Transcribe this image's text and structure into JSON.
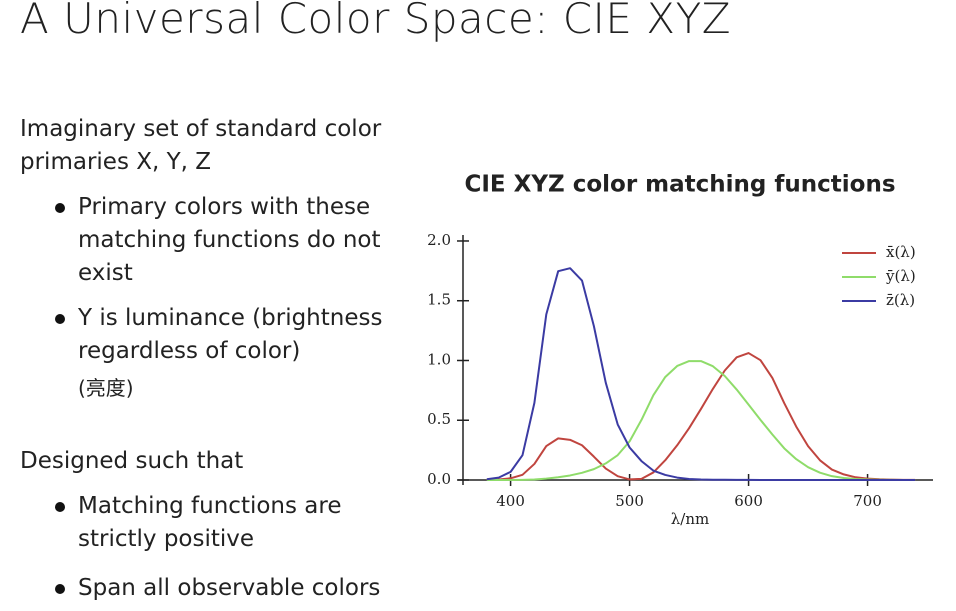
{
  "title": "A Universal Color Space: CIE XYZ",
  "sections": [
    {
      "text": "Imaginary set of standard color primaries X, Y, Z",
      "bullets": [
        "Primary colors with these matching functions do not exist",
        "Y is luminance (brightness regardless of color)"
      ],
      "note": "(亮度)"
    },
    {
      "text": "Designed such that",
      "bullets": [
        "Matching functions are strictly positive",
        "Span all observable colors"
      ]
    }
  ],
  "chart_data": {
    "type": "line",
    "title": "CIE XYZ color matching functions",
    "x_label": "λ/nm",
    "x": [
      380,
      390,
      400,
      410,
      420,
      430,
      440,
      450,
      460,
      470,
      480,
      490,
      500,
      510,
      520,
      530,
      540,
      550,
      560,
      570,
      580,
      590,
      600,
      610,
      620,
      630,
      640,
      650,
      660,
      670,
      680,
      690,
      700,
      710,
      720,
      730,
      740
    ],
    "series": [
      {
        "name": "x̄(λ)",
        "color": "#c0453f",
        "values": [
          0.0014,
          0.0042,
          0.0143,
          0.0435,
          0.1344,
          0.2839,
          0.3483,
          0.3362,
          0.2908,
          0.1954,
          0.0956,
          0.032,
          0.0049,
          0.0093,
          0.0633,
          0.1655,
          0.2904,
          0.4334,
          0.5945,
          0.7621,
          0.9163,
          1.0263,
          1.0622,
          1.0026,
          0.8544,
          0.6424,
          0.4479,
          0.2835,
          0.1649,
          0.0874,
          0.0468,
          0.0227,
          0.0114,
          0.0058,
          0.0029,
          0.0014,
          0.0007
        ]
      },
      {
        "name": "ȳ(λ)",
        "color": "#8fdc6a",
        "values": [
          0,
          0.0001,
          0.0004,
          0.0012,
          0.004,
          0.0116,
          0.023,
          0.038,
          0.06,
          0.091,
          0.139,
          0.208,
          0.323,
          0.503,
          0.71,
          0.862,
          0.954,
          0.995,
          0.995,
          0.952,
          0.87,
          0.757,
          0.631,
          0.503,
          0.381,
          0.265,
          0.175,
          0.107,
          0.061,
          0.032,
          0.017,
          0.0082,
          0.0041,
          0.0021,
          0.001,
          0.0005,
          0.0002
        ]
      },
      {
        "name": "z̄(λ)",
        "color": "#3b3ba3",
        "values": [
          0.0065,
          0.0201,
          0.0679,
          0.2074,
          0.6456,
          1.3856,
          1.7471,
          1.7721,
          1.6692,
          1.2876,
          0.813,
          0.4652,
          0.272,
          0.1582,
          0.0782,
          0.0422,
          0.0203,
          0.0087,
          0.0039,
          0.0021,
          0.0017,
          0.0011,
          0.0008,
          0.0003,
          0.0002,
          0,
          0,
          0,
          0,
          0,
          0,
          0,
          0,
          0,
          0,
          0,
          0
        ]
      }
    ],
    "xlim": [
      360,
      755
    ],
    "xticks": [
      400,
      500,
      600,
      700
    ],
    "ylim": [
      0,
      2.05
    ],
    "yticks": [
      {
        "value": 0,
        "label": "0.0"
      },
      {
        "value": 0.5,
        "label": "0.5"
      },
      {
        "value": 1,
        "label": "1.0"
      },
      {
        "value": 1.5,
        "label": "1.5"
      },
      {
        "value": 2,
        "label": "2.0"
      }
    ],
    "legend": "upper right"
  }
}
